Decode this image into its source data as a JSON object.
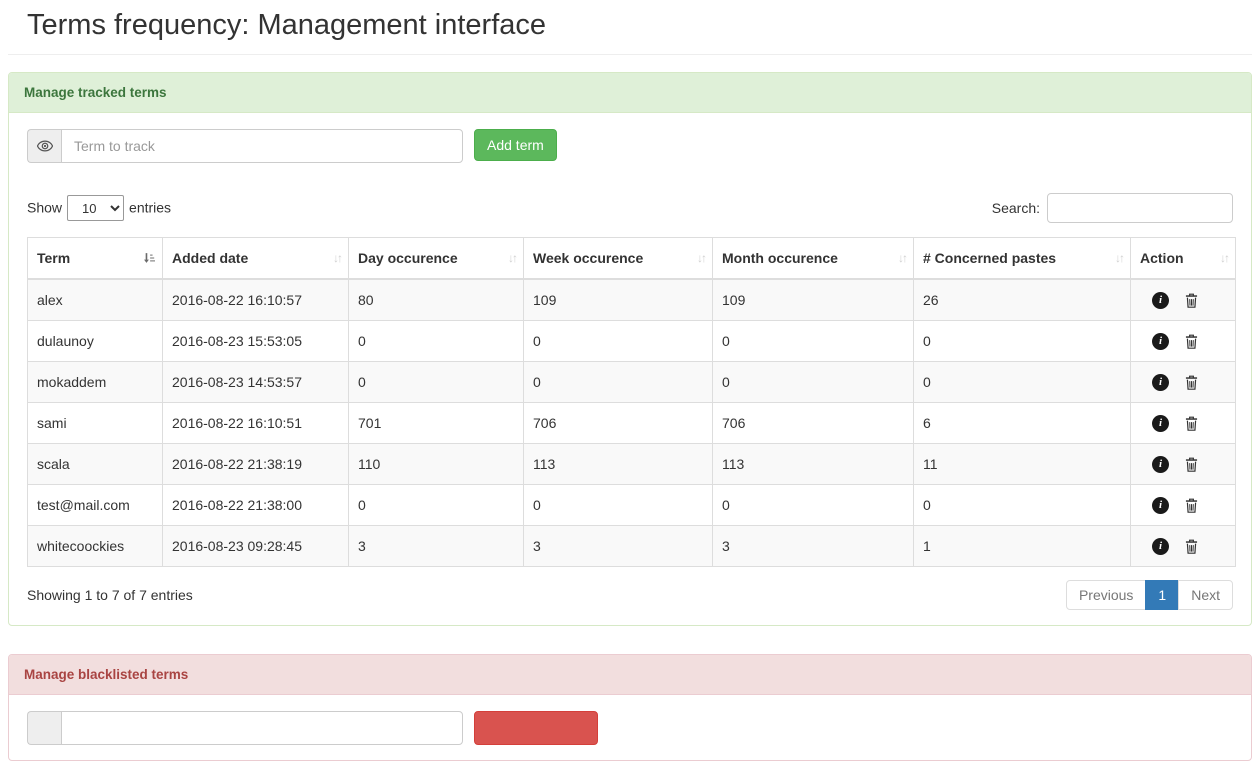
{
  "page": {
    "title": "Terms frequency: Management interface"
  },
  "tracked_panel": {
    "title": "Manage tracked terms",
    "term_input_placeholder": "Term to track",
    "add_button_label": "Add term",
    "show_label": "Show",
    "entries_label": "entries",
    "page_length": "10",
    "search_label": "Search:",
    "search_value": "",
    "table": {
      "columns": [
        "Term",
        "Added date",
        "Day occurence",
        "Week occurence",
        "Month occurence",
        "# Concerned pastes",
        "Action"
      ],
      "rows": [
        {
          "term": "alex",
          "added_date": "2016-08-22 16:10:57",
          "day": "80",
          "week": "109",
          "month": "109",
          "pastes": "26"
        },
        {
          "term": "dulaunoy",
          "added_date": "2016-08-23 15:53:05",
          "day": "0",
          "week": "0",
          "month": "0",
          "pastes": "0"
        },
        {
          "term": "mokaddem",
          "added_date": "2016-08-23 14:53:57",
          "day": "0",
          "week": "0",
          "month": "0",
          "pastes": "0"
        },
        {
          "term": "sami",
          "added_date": "2016-08-22 16:10:51",
          "day": "701",
          "week": "706",
          "month": "706",
          "pastes": "6"
        },
        {
          "term": "scala",
          "added_date": "2016-08-22 21:38:19",
          "day": "110",
          "week": "113",
          "month": "113",
          "pastes": "11"
        },
        {
          "term": "test@mail.com",
          "added_date": "2016-08-22 21:38:00",
          "day": "0",
          "week": "0",
          "month": "0",
          "pastes": "0"
        },
        {
          "term": "whitecoockies",
          "added_date": "2016-08-23 09:28:45",
          "day": "3",
          "week": "3",
          "month": "3",
          "pastes": "1"
        }
      ],
      "action_icons": [
        "info",
        "trash"
      ]
    },
    "info_text": "Showing 1 to 7 of 7 entries",
    "pagination": {
      "previous": "Previous",
      "current": "1",
      "next": "Next"
    }
  },
  "blacklist_panel": {
    "title": "Manage blacklisted terms"
  },
  "colors": {
    "success_bg": "#dff0d8",
    "success_border": "#d6e9c6",
    "success_text": "#3c763d",
    "danger_bg": "#f2dede",
    "danger_border": "#ebccd1",
    "danger_text": "#a94442",
    "btn_success": "#5cb85c",
    "btn_danger": "#d9534f",
    "pagination_active": "#337ab7",
    "table_border": "#dddddd",
    "stripe": "#f9f9f9"
  }
}
